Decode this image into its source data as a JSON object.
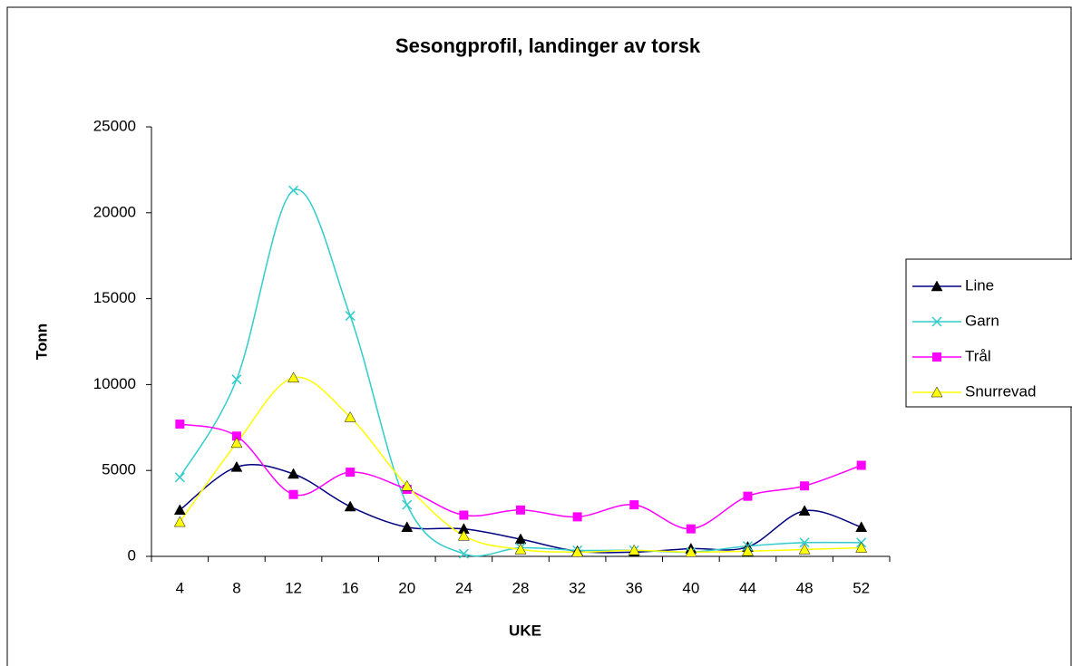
{
  "chart_data": {
    "type": "line",
    "title": "Sesongprofil, landinger av torsk",
    "x_label": "UKE",
    "y_label": "Tonn",
    "categories": [
      4,
      8,
      12,
      16,
      20,
      24,
      28,
      32,
      36,
      40,
      44,
      48,
      52
    ],
    "series": [
      {
        "name": "Line",
        "color": "#000080",
        "marker": "triangle",
        "marker_color": "#000000",
        "values": [
          2700,
          5200,
          4800,
          2900,
          1700,
          1600,
          1000,
          300,
          250,
          450,
          550,
          2650,
          1700
        ]
      },
      {
        "name": "Garn",
        "color": "#33CCCC",
        "marker": "x",
        "marker_color": "#33CCCC",
        "values": [
          4600,
          10300,
          21300,
          14000,
          3000,
          150,
          500,
          350,
          350,
          250,
          600,
          800,
          800
        ]
      },
      {
        "name": "Trål",
        "color": "#FF00FF",
        "marker": "square",
        "marker_color": "#FF00FF",
        "values": [
          7700,
          7000,
          3600,
          4900,
          3900,
          2400,
          2700,
          2300,
          3000,
          1600,
          3500,
          4100,
          5300
        ]
      },
      {
        "name": "Snurrevad",
        "color": "#FFFF00",
        "marker": "triangle",
        "marker_color": "#FFFF00",
        "values": [
          2000,
          6600,
          10400,
          8100,
          4100,
          1200,
          400,
          250,
          350,
          250,
          300,
          400,
          500
        ]
      }
    ],
    "ylim": [
      0,
      25000
    ],
    "yticks": [
      0,
      5000,
      10000,
      15000,
      20000,
      25000
    ],
    "smooth": true,
    "legend": "right"
  }
}
